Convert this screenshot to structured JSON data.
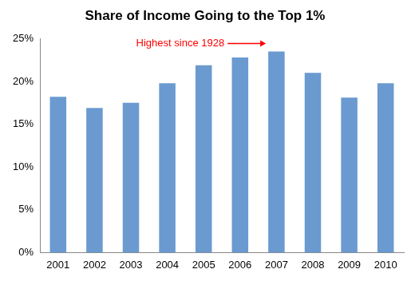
{
  "chart_data": {
    "type": "bar",
    "title": "Share of Income Going to the Top 1%",
    "categories": [
      "2001",
      "2002",
      "2003",
      "2004",
      "2005",
      "2006",
      "2007",
      "2008",
      "2009",
      "2010"
    ],
    "values": [
      18.2,
      16.9,
      17.5,
      19.8,
      21.9,
      22.8,
      23.5,
      21.0,
      18.1,
      19.8
    ],
    "color": "#6a9ad0",
    "ylim": [
      0,
      25
    ],
    "yticks": [
      {
        "value": 0,
        "label": "0%"
      },
      {
        "value": 5,
        "label": "5%"
      },
      {
        "value": 10,
        "label": "10%"
      },
      {
        "value": 15,
        "label": "15%"
      },
      {
        "value": 20,
        "label": "20%"
      },
      {
        "value": 25,
        "label": "25%"
      }
    ],
    "grid": false,
    "annotation": {
      "text": "Highest since 1928",
      "category": "2007"
    }
  }
}
